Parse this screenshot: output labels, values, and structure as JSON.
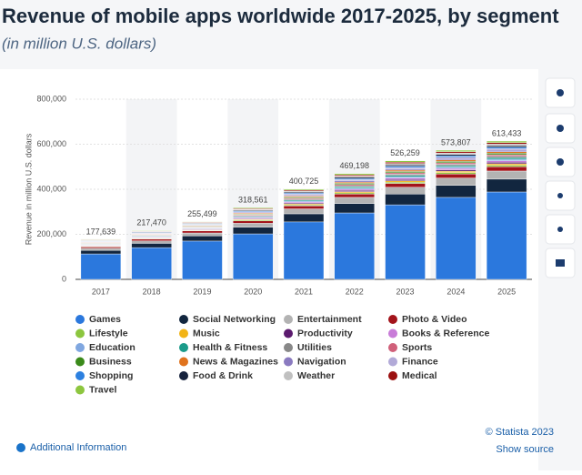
{
  "chart_data": {
    "type": "stacked_bar",
    "title": "Revenue of mobile apps worldwide 2017-2025, by segment",
    "subtitle": "(in million U.S. dollars)",
    "y_label": "Revenue in million U.S. dollars",
    "categories": [
      "2017",
      "2018",
      "2019",
      "2020",
      "2021",
      "2022",
      "2023",
      "2024",
      "2025"
    ],
    "totals": [
      177639,
      217470,
      255499,
      318561,
      400725,
      469198,
      526259,
      573807,
      613433
    ],
    "total_labels": [
      "177,639",
      "217,470",
      "255,499",
      "318,561",
      "400,725",
      "469,198",
      "526,259",
      "573,807",
      "613,433"
    ],
    "ylim": [
      0,
      800000
    ],
    "yticks": [
      0,
      {
        "value": 200000,
        "label": "200,000"
      },
      {
        "value": 400000,
        "label": "400,000"
      },
      {
        "value": 600000,
        "label": "600,000"
      },
      {
        "value": 800000,
        "label": "800,000"
      }
    ],
    "grid": true,
    "series": [
      {
        "name": "Games",
        "color": "#2b78dd",
        "values": [
          113000,
          141000,
          170000,
          202000,
          255000,
          295000,
          331000,
          364000,
          388000
        ]
      },
      {
        "name": "Social Networking",
        "color": "#12263f",
        "values": [
          16000,
          19000,
          23000,
          30000,
          36000,
          42000,
          48000,
          53000,
          57000
        ]
      },
      {
        "name": "Entertainment",
        "color": "#b3b3b3",
        "values": [
          9000,
          11000,
          13000,
          17000,
          22000,
          27000,
          30000,
          33000,
          36000
        ]
      },
      {
        "name": "Photo & Video",
        "color": "#a3141b",
        "values": [
          6000,
          7500,
          9000,
          11000,
          13000,
          15000,
          17000,
          18000,
          19000
        ]
      },
      {
        "name": "Lifestyle",
        "color": "#8cc63f",
        "values": [
          2000,
          2300,
          2400,
          3400,
          4400,
          5300,
          5900,
          6200,
          6700
        ]
      },
      {
        "name": "Music",
        "color": "#f2b416",
        "values": [
          2000,
          2300,
          2400,
          3400,
          4400,
          5300,
          5900,
          6200,
          6700
        ]
      },
      {
        "name": "Productivity",
        "color": "#5b1a6e",
        "values": [
          2000,
          2300,
          2400,
          3400,
          4400,
          5300,
          5900,
          6200,
          6700
        ]
      },
      {
        "name": "Books & Reference",
        "color": "#c87cd8",
        "values": [
          2000,
          2300,
          2400,
          3400,
          4400,
          5300,
          5900,
          6200,
          6700
        ]
      },
      {
        "name": "Education",
        "color": "#80a7e0",
        "values": [
          2000,
          2300,
          2400,
          3400,
          4400,
          5300,
          5900,
          6200,
          6700
        ]
      },
      {
        "name": "Health & Fitness",
        "color": "#1b9b8a",
        "values": [
          2000,
          2300,
          2400,
          3400,
          4400,
          5300,
          5900,
          6200,
          6700
        ]
      },
      {
        "name": "Utilities",
        "color": "#888888",
        "values": [
          2000,
          2300,
          2400,
          3400,
          4400,
          5300,
          5900,
          6200,
          6700
        ]
      },
      {
        "name": "Sports",
        "color": "#d0607a",
        "values": [
          2000,
          2300,
          2400,
          3400,
          4400,
          5300,
          5900,
          6200,
          6700
        ]
      },
      {
        "name": "Business",
        "color": "#3a8a1a",
        "values": [
          2000,
          2300,
          2400,
          3400,
          4400,
          5300,
          5900,
          6200,
          6700
        ]
      },
      {
        "name": "News & Magazines",
        "color": "#e0731d",
        "values": [
          2000,
          2300,
          2400,
          3400,
          4400,
          5300,
          5900,
          6200,
          6700
        ]
      },
      {
        "name": "Navigation",
        "color": "#8a7ac0",
        "values": [
          2000,
          2300,
          2400,
          3400,
          4400,
          5300,
          5900,
          6200,
          6700
        ]
      },
      {
        "name": "Finance",
        "color": "#b2aad8",
        "values": [
          2000,
          2300,
          2400,
          3400,
          4400,
          5300,
          5900,
          6200,
          6700
        ]
      },
      {
        "name": "Shopping",
        "color": "#2c80e0",
        "values": [
          2000,
          2300,
          2400,
          3400,
          4400,
          5300,
          5900,
          6200,
          6700
        ]
      },
      {
        "name": "Food & Drink",
        "color": "#16223d",
        "values": [
          2000,
          2300,
          2400,
          3400,
          4400,
          5300,
          5900,
          6200,
          6700
        ]
      },
      {
        "name": "Weather",
        "color": "#c0c0c0",
        "values": [
          2000,
          2300,
          2400,
          3400,
          4400,
          5300,
          5900,
          6200,
          6700
        ]
      },
      {
        "name": "Medical",
        "color": "#9b1010",
        "values": [
          2000,
          2300,
          2400,
          3400,
          4400,
          5300,
          5900,
          6200,
          6700
        ]
      },
      {
        "name": "Travel",
        "color": "#8dc63f",
        "values": [
          2000,
          2300,
          2400,
          3400,
          4400,
          5300,
          5900,
          6200,
          6700
        ]
      }
    ],
    "source": "© Statista 2023",
    "show_source": "Show source",
    "additional_info": "Additional Information"
  }
}
